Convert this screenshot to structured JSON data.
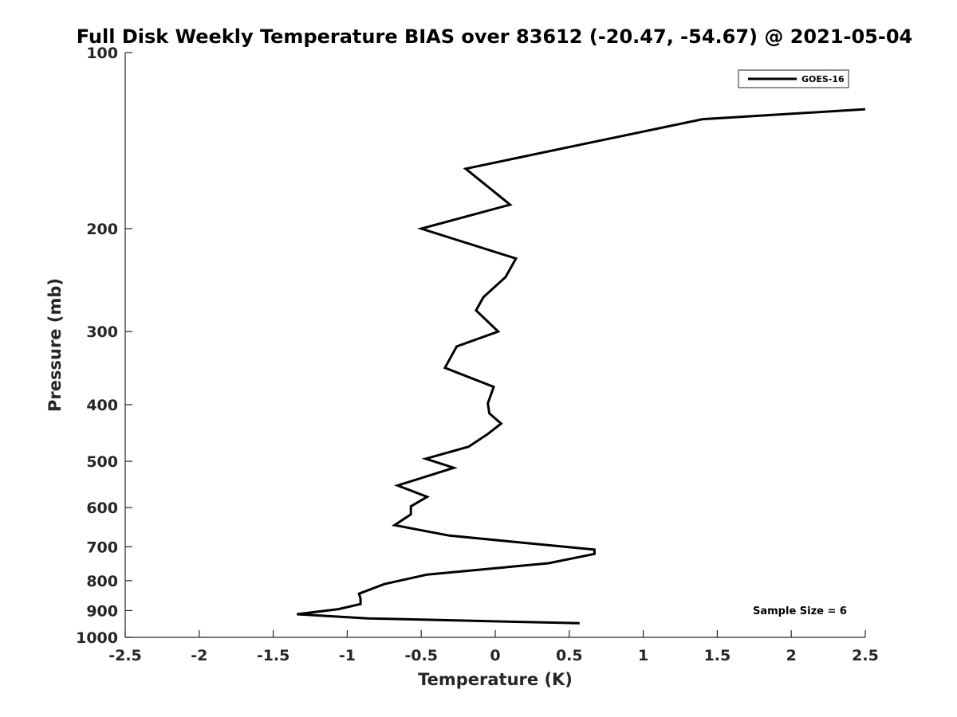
{
  "chart_data": {
    "type": "line",
    "title": "Full Disk Weekly Temperature BIAS over 83612 (-20.47, -54.67) @ 2021-05-04",
    "xlabel": "Temperature (K)",
    "ylabel": "Pressure (mb)",
    "xlim": [
      -2.5,
      2.5
    ],
    "ylim": [
      100,
      1000
    ],
    "y_scale": "log",
    "y_reversed": true,
    "grid": false,
    "legend_position": "top-right",
    "x_ticks": [
      -2.5,
      -2,
      -1.5,
      -1,
      -0.5,
      0,
      0.5,
      1,
      1.5,
      2,
      2.5
    ],
    "x_tick_labels": [
      "-2.5",
      "-2",
      "-1.5",
      "-1",
      "-0.5",
      "0",
      "0.5",
      "1",
      "1.5",
      "2",
      "2.5"
    ],
    "y_ticks": [
      100,
      200,
      300,
      400,
      500,
      600,
      700,
      800,
      900,
      1000
    ],
    "y_tick_labels": [
      "100",
      "200",
      "300",
      "400",
      "500",
      "600",
      "700",
      "800",
      "900",
      "1000"
    ],
    "annotation": "Sample Size = 6",
    "series": [
      {
        "name": "GOES-16",
        "color": "#000000",
        "x": [
          2.5,
          1.4,
          -0.2,
          0.1,
          -0.5,
          0.14,
          0.07,
          -0.08,
          -0.13,
          0.02,
          -0.26,
          -0.34,
          -0.01,
          -0.05,
          -0.04,
          0.04,
          -0.05,
          -0.18,
          -0.47,
          -0.28,
          -0.66,
          -0.46,
          -0.57,
          -0.57,
          -0.68,
          -0.31,
          0.67,
          0.67,
          0.36,
          -0.46,
          -0.75,
          -0.92,
          -0.91,
          -0.91,
          -1.06,
          -1.34,
          -0.86,
          0.57
        ],
        "y": [
          125,
          130,
          158,
          182,
          200,
          225,
          242,
          262,
          276,
          300,
          318,
          346,
          373,
          398,
          414,
          431,
          449,
          472,
          495,
          513,
          550,
          575,
          597,
          616,
          643,
          670,
          708,
          720,
          747,
          781,
          811,
          842,
          859,
          877,
          895,
          913,
          928,
          946
        ]
      }
    ]
  }
}
